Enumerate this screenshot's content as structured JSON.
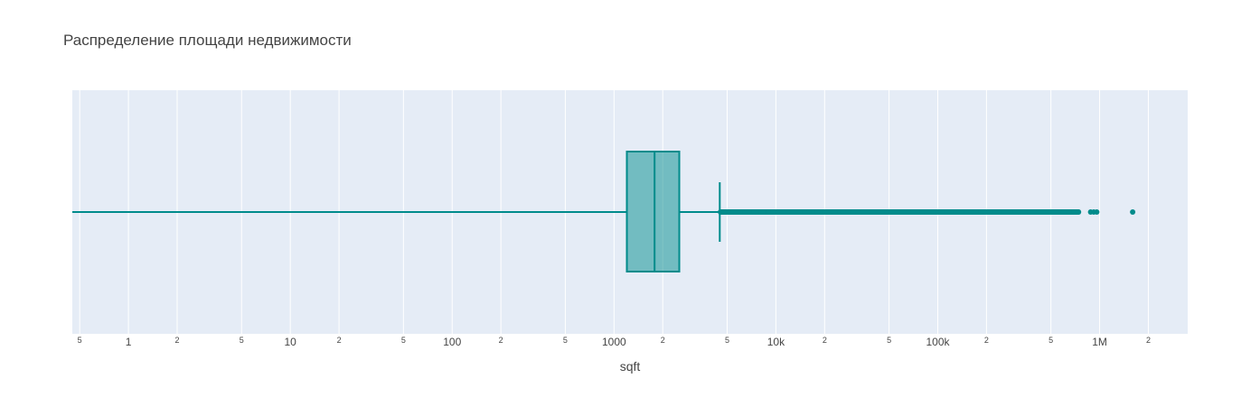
{
  "chart_data": {
    "type": "box",
    "title": "Распределение площади недвижимости",
    "xlabel": "sqft",
    "xscale": "log",
    "xlim": [
      0.45,
      3500000
    ],
    "orientation": "horizontal",
    "grid": true,
    "colors": {
      "plot_bg": "#e5ecf6",
      "grid": "#ffffff",
      "box_line": "#008b8b",
      "box_fill": "rgba(0,139,139,0.5)"
    },
    "box": {
      "min": 0.45,
      "q1": 1200,
      "median": 1780,
      "q3": 2530,
      "upper_fence": 4500
    },
    "outliers": [
      4550,
      4800,
      5100,
      5500,
      6000,
      6600,
      7300,
      8100,
      9000,
      10000,
      11000,
      12500,
      14000,
      16000,
      18000,
      20000,
      23000,
      26000,
      30000,
      34000,
      39000,
      45000,
      52000,
      60000,
      70000,
      80000,
      92000,
      105000,
      120000,
      140000,
      160000,
      185000,
      210000,
      240000,
      280000,
      320000,
      370000,
      420000,
      480000,
      540000,
      600000,
      650000,
      700000,
      740000,
      880000,
      920000,
      960000,
      1600000
    ],
    "ticks": [
      {
        "value": 0.5,
        "label": "5",
        "minor": true
      },
      {
        "value": 1,
        "label": "1",
        "minor": false
      },
      {
        "value": 2,
        "label": "2",
        "minor": true
      },
      {
        "value": 5,
        "label": "5",
        "minor": true
      },
      {
        "value": 10,
        "label": "10",
        "minor": false
      },
      {
        "value": 20,
        "label": "2",
        "minor": true
      },
      {
        "value": 50,
        "label": "5",
        "minor": true
      },
      {
        "value": 100,
        "label": "100",
        "minor": false
      },
      {
        "value": 200,
        "label": "2",
        "minor": true
      },
      {
        "value": 500,
        "label": "5",
        "minor": true
      },
      {
        "value": 1000,
        "label": "1000",
        "minor": false
      },
      {
        "value": 2000,
        "label": "2",
        "minor": true
      },
      {
        "value": 5000,
        "label": "5",
        "minor": true
      },
      {
        "value": 10000,
        "label": "10k",
        "minor": false
      },
      {
        "value": 20000,
        "label": "2",
        "minor": true
      },
      {
        "value": 50000,
        "label": "5",
        "minor": true
      },
      {
        "value": 100000,
        "label": "100k",
        "minor": false
      },
      {
        "value": 200000,
        "label": "2",
        "minor": true
      },
      {
        "value": 500000,
        "label": "5",
        "minor": true
      },
      {
        "value": 1000000,
        "label": "1M",
        "minor": false
      },
      {
        "value": 2000000,
        "label": "2",
        "minor": true
      }
    ]
  }
}
